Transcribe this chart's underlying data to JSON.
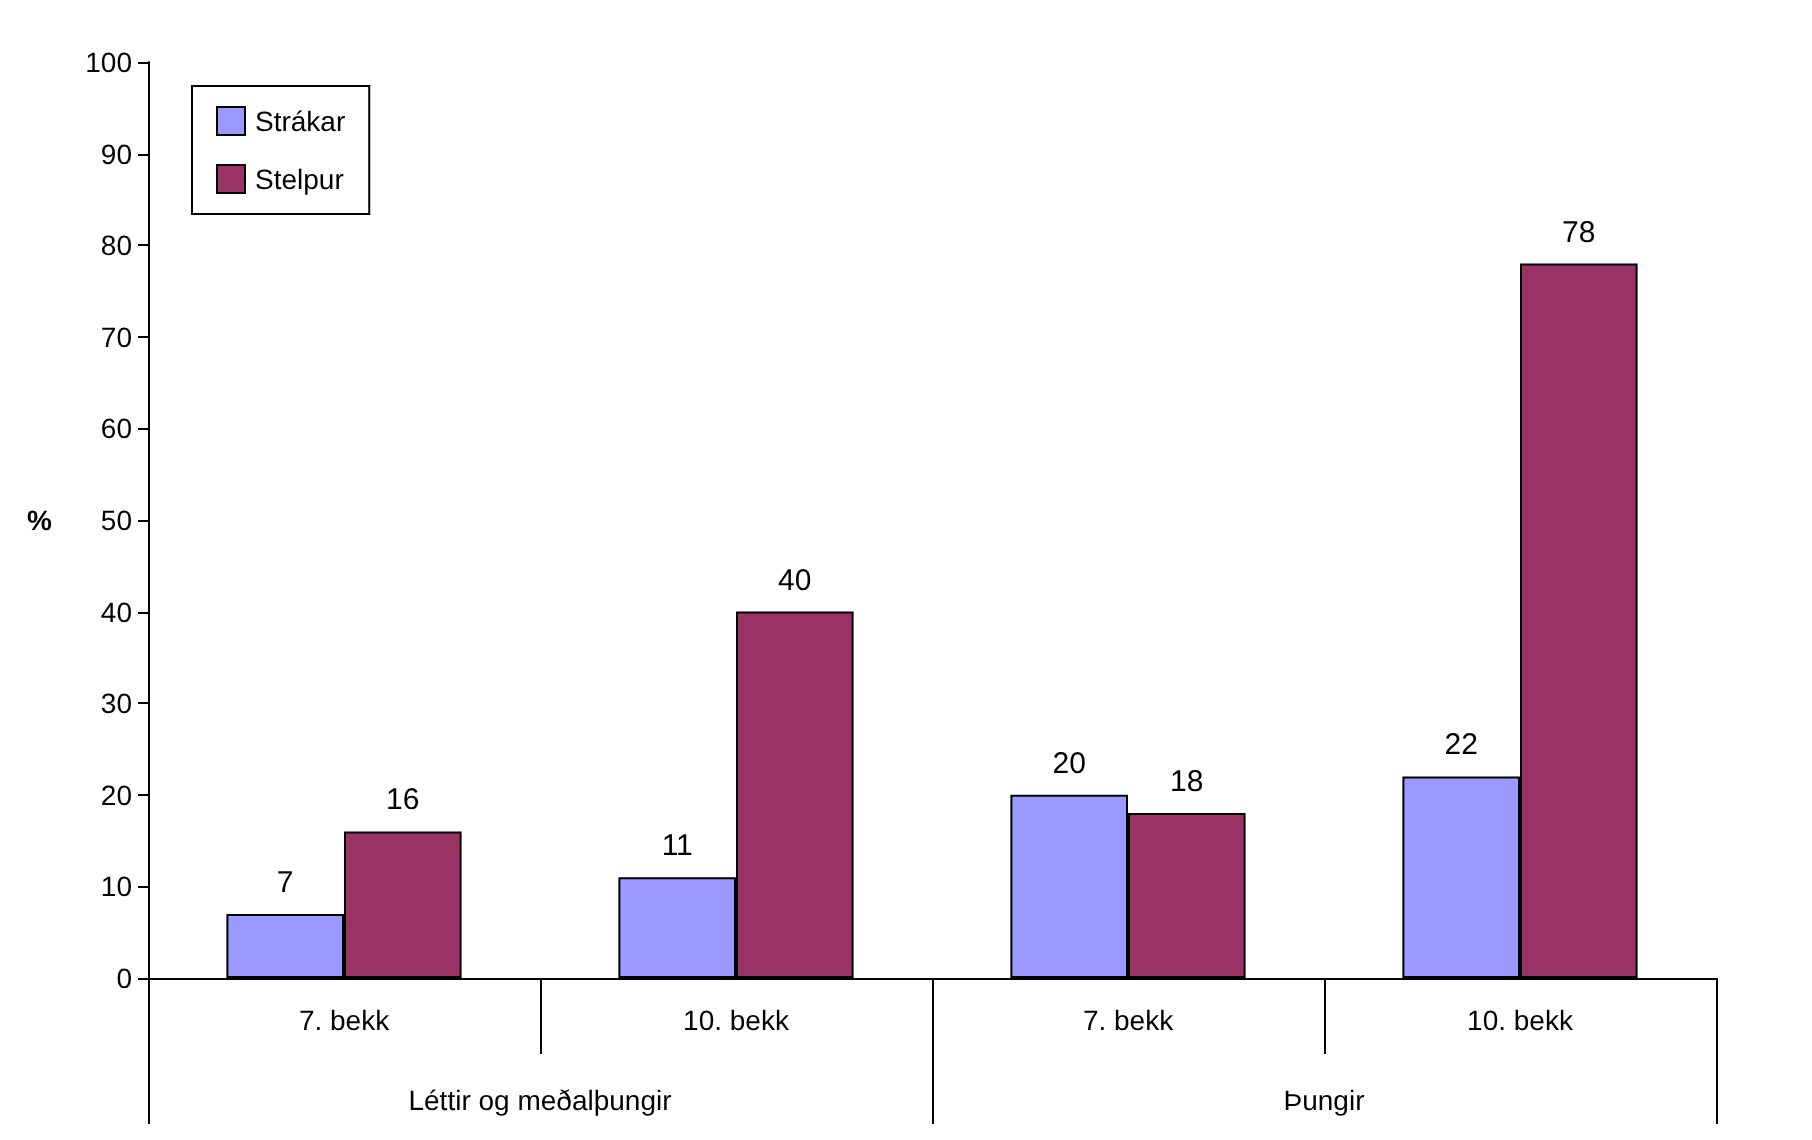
{
  "chart_data": {
    "type": "bar",
    "ylabel": "%",
    "categories": [
      "7. bekk",
      "10. bekk",
      "7. bekk",
      "10. bekk"
    ],
    "annotations": [
      "Léttir og meðalþungir",
      "Þungir"
    ],
    "series": [
      {
        "name": "Strákar",
        "color": "#9999ff",
        "values": [
          7,
          11,
          20,
          22
        ]
      },
      {
        "name": "Stelpur",
        "color": "#993366",
        "values": [
          16,
          40,
          18,
          78
        ]
      }
    ],
    "ylim": [
      0,
      100
    ],
    "yticks": [
      0,
      10,
      20,
      30,
      40,
      50,
      60,
      70,
      80,
      90,
      100
    ],
    "data_labels": true,
    "legend": "top left",
    "grid": false
  }
}
